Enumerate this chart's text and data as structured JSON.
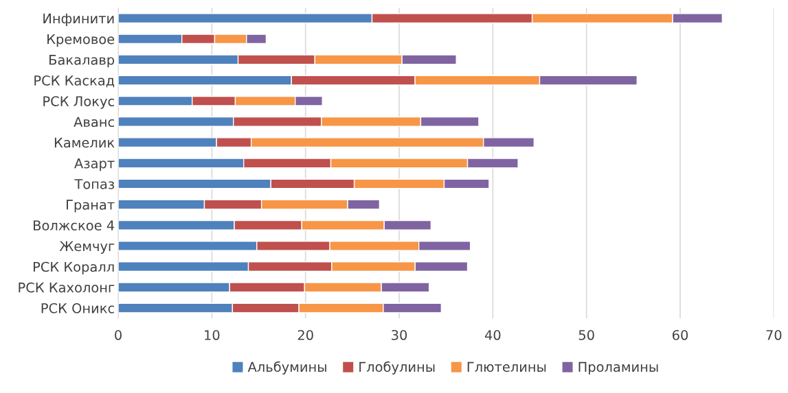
{
  "chart_data": {
    "type": "bar",
    "orientation": "horizontal",
    "stacked": true,
    "categories": [
      "Инфинити",
      "Кремовое",
      "Бакалавр",
      "РСК Каскад",
      "РСК Локус",
      "Аванс",
      "Камелик",
      "Азарт",
      "Топаз",
      "Гранат",
      "Волжское 4",
      "Жемчуг",
      "РСК Коралл",
      "РСК Кахолонг",
      "РСК Оникс"
    ],
    "series": [
      {
        "name": "Альбумины",
        "color": "#4f81bd",
        "values": [
          27.1,
          6.8,
          12.8,
          18.5,
          7.9,
          12.3,
          10.5,
          13.4,
          16.3,
          9.2,
          12.4,
          14.8,
          13.9,
          11.9,
          12.2
        ]
      },
      {
        "name": "Глобулины",
        "color": "#c0504d",
        "values": [
          17.1,
          3.5,
          8.2,
          13.2,
          4.6,
          9.4,
          3.7,
          9.3,
          8.9,
          6.1,
          7.2,
          7.8,
          8.9,
          8.0,
          7.1
        ]
      },
      {
        "name": "Глютелины",
        "color": "#f79646",
        "values": [
          15.0,
          3.4,
          9.3,
          13.3,
          6.4,
          10.6,
          24.8,
          14.6,
          9.6,
          9.2,
          8.8,
          9.5,
          8.9,
          8.2,
          9.0
        ]
      },
      {
        "name": "Проламины",
        "color": "#8064a2",
        "values": [
          5.3,
          2.1,
          5.8,
          10.4,
          2.9,
          6.2,
          5.4,
          5.4,
          4.8,
          3.4,
          5.0,
          5.5,
          5.6,
          5.1,
          6.2
        ]
      }
    ],
    "xlim": [
      0,
      70
    ],
    "xticks": [
      0,
      10,
      20,
      30,
      40,
      50,
      60,
      70
    ],
    "grid": "x",
    "legend": "bottom"
  }
}
